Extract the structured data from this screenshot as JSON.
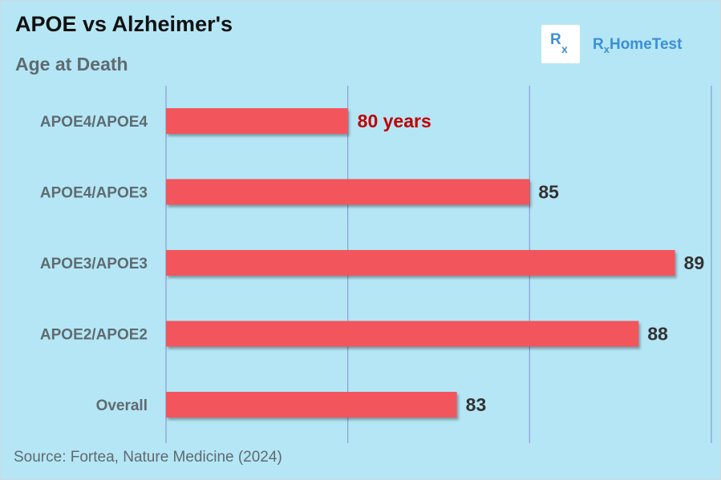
{
  "title": "APOE vs Alzheimer's",
  "subtitle": "Age at Death",
  "source": "Source: Fortea, Nature Medicine (2024)",
  "logo": {
    "box_letter": "R",
    "box_sub": "x",
    "text_r": "R",
    "text_sub": "x",
    "text_rest": "HomeTest"
  },
  "colors": {
    "background": "#b5e6f5",
    "bar": "#f2545b",
    "highlight_label": "#c00000",
    "gridline": "#8f9fd8"
  },
  "chart_data": {
    "type": "bar",
    "orientation": "horizontal",
    "title": "APOE vs Alzheimer's",
    "subtitle": "Age at Death",
    "categories": [
      "APOE4/APOE4",
      "APOE4/APOE3",
      "APOE3/APOE3",
      "APOE2/APOE2",
      "Overall"
    ],
    "values": [
      80,
      85,
      89,
      88,
      83
    ],
    "data_labels": [
      "80 years",
      "85",
      "89",
      "88",
      "83"
    ],
    "highlight_index": 0,
    "xlim": [
      75,
      90
    ],
    "gridlines_at": [
      75,
      80,
      85,
      90
    ],
    "tick_labels_shown": false,
    "grid": true,
    "legend": "none"
  }
}
